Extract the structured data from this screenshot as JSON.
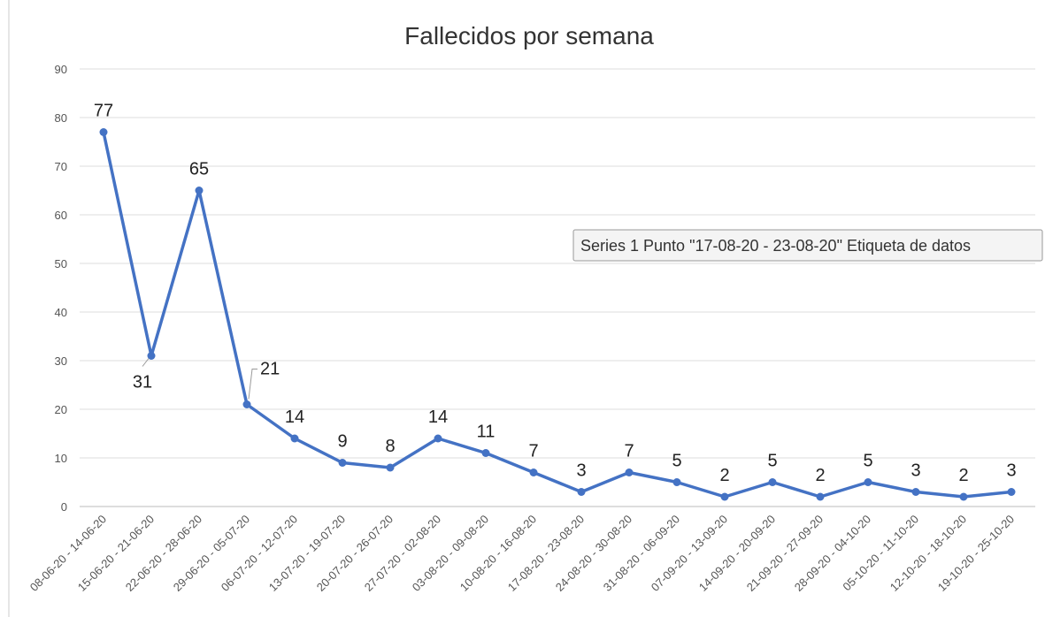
{
  "chart_data": {
    "type": "line",
    "title": "Fallecidos por semana",
    "categories": [
      "08-06-20 - 14-06-20",
      "15-06-20 - 21-06-20",
      "22-06-20 - 28-06-20",
      "29-06-20 - 05-07-20",
      "06-07-20 - 12-07-20",
      "13-07-20 - 19-07-20",
      "20-07-20 - 26-07-20",
      "27-07-20 - 02-08-20",
      "03-08-20 - 09-08-20",
      "10-08-20 - 16-08-20",
      "17-08-20 - 23-08-20",
      "24-08-20 - 30-08-20",
      "31-08-20 - 06-09-20",
      "07-09-20 - 13-09-20",
      "14-09-20 - 20-09-20",
      "21-09-20 - 27-09-20",
      "28-09-20 - 04-10-20",
      "05-10-20 - 11-10-20",
      "12-10-20 - 18-10-20",
      "19-10-20 - 25-10-20"
    ],
    "series": [
      {
        "name": "Series 1",
        "color": "#4472c4",
        "values": [
          77,
          31,
          65,
          21,
          14,
          9,
          8,
          14,
          11,
          7,
          3,
          7,
          5,
          2,
          5,
          2,
          5,
          3,
          2,
          3
        ]
      }
    ],
    "ylim": [
      0,
      90
    ],
    "yticks": [
      0,
      10,
      20,
      30,
      40,
      50,
      60,
      70,
      80,
      90
    ],
    "grid": true,
    "tooltip": "Series 1 Punto \"17-08-20 - 23-08-20\" Etiqueta de datos"
  }
}
